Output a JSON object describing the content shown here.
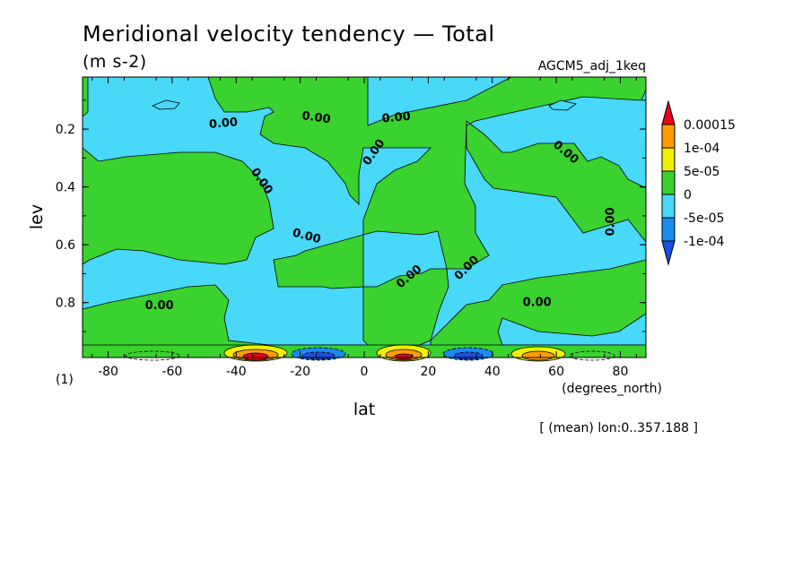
{
  "chart_data": {
    "type": "heatmap",
    "title": "Meridional velocity tendency — Total",
    "units": "(m s-2)",
    "experiment": "AGCM5_adj_1keq",
    "xlabel": "lat",
    "ylabel": "lev",
    "x_units": "(degrees_north)",
    "panel_number": "(1)",
    "note": "[ (mean) lon:0..357.188 ]",
    "xlim": [
      -88,
      88
    ],
    "ylim": [
      0.02,
      0.99
    ],
    "x_ticks": [
      -80,
      -60,
      -40,
      -20,
      0,
      20,
      40,
      60,
      80
    ],
    "y_ticks": [
      0.2,
      0.4,
      0.6,
      0.8
    ],
    "colorbar": {
      "levels": [
        "0.00015",
        "1e-04",
        "5e-05",
        "0",
        "-5e-05",
        "-1e-04"
      ],
      "colors": [
        "#e8001c",
        "#ff9d00",
        "#f0f000",
        "#39d22e",
        "#48d8f8",
        "#1a8cf0",
        "#1c4ee0"
      ]
    },
    "contour_labels": [
      {
        "text": "0.00",
        "lat": -44,
        "lev": 0.18,
        "angle": -5
      },
      {
        "text": "0.00",
        "lat": -15,
        "lev": 0.16,
        "angle": 8
      },
      {
        "text": "0.00",
        "lat": 10,
        "lev": 0.16,
        "angle": -5
      },
      {
        "text": "0.00",
        "lat": -32,
        "lev": 0.38,
        "angle": 55
      },
      {
        "text": "0.00",
        "lat": 3,
        "lev": 0.28,
        "angle": -55
      },
      {
        "text": "0.00",
        "lat": 63,
        "lev": 0.28,
        "angle": 40
      },
      {
        "text": "0.00",
        "lat": 77,
        "lev": 0.52,
        "angle": -90
      },
      {
        "text": "0.00",
        "lat": -18,
        "lev": 0.57,
        "angle": 15
      },
      {
        "text": "0.00",
        "lat": 14,
        "lev": 0.71,
        "angle": -40
      },
      {
        "text": "0.00",
        "lat": 32,
        "lev": 0.68,
        "angle": -45
      },
      {
        "text": "0.00",
        "lat": -64,
        "lev": 0.81,
        "angle": 0
      },
      {
        "text": "0.00",
        "lat": 54,
        "lev": 0.8,
        "angle": 0
      }
    ]
  }
}
